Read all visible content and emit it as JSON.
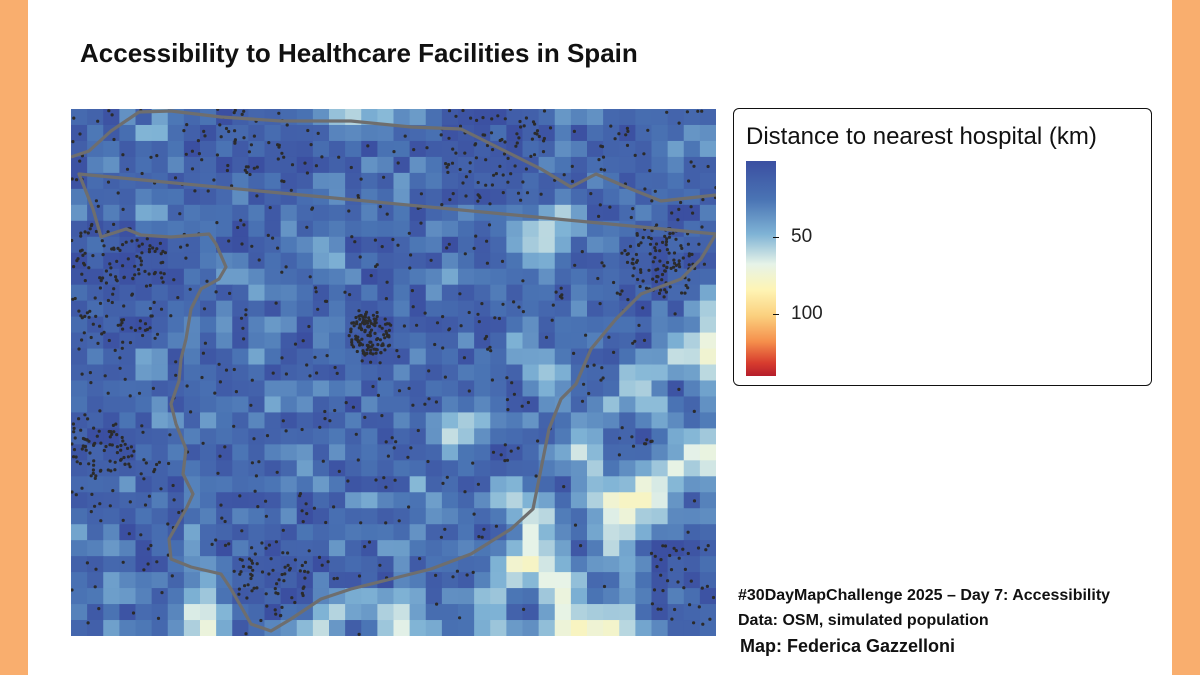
{
  "title": "Accessibility to Healthcare Facilities in Spain",
  "legend": {
    "title": "Distance to nearest hospital (km)",
    "ticks": [
      {
        "value": 50,
        "label": "50"
      },
      {
        "value": 100,
        "label": "100"
      }
    ],
    "min_km": 0,
    "max_km": 140,
    "palette": [
      "#3B4FA1",
      "#4A74B4",
      "#7FB3D5",
      "#E6F3E8",
      "#FEF4B4",
      "#FBD07E",
      "#F58F4C",
      "#D73C2E",
      "#B51E2C"
    ]
  },
  "captions": {
    "line1": "#30DayMapChallenge 2025 – Day 7: Accessibility",
    "line2": "Data: OSM, simulated population",
    "line3": "Map: Federica Gazzelloni"
  },
  "colors": {
    "frame": "#F9AE6E",
    "boundary": "#6E6E6E",
    "point": "#2B2B2B"
  },
  "map": {
    "region": "Spain",
    "layers": [
      "distance-raster",
      "hospital-points",
      "country-boundary"
    ],
    "grid": {
      "cols": 40,
      "rows": 33
    }
  }
}
